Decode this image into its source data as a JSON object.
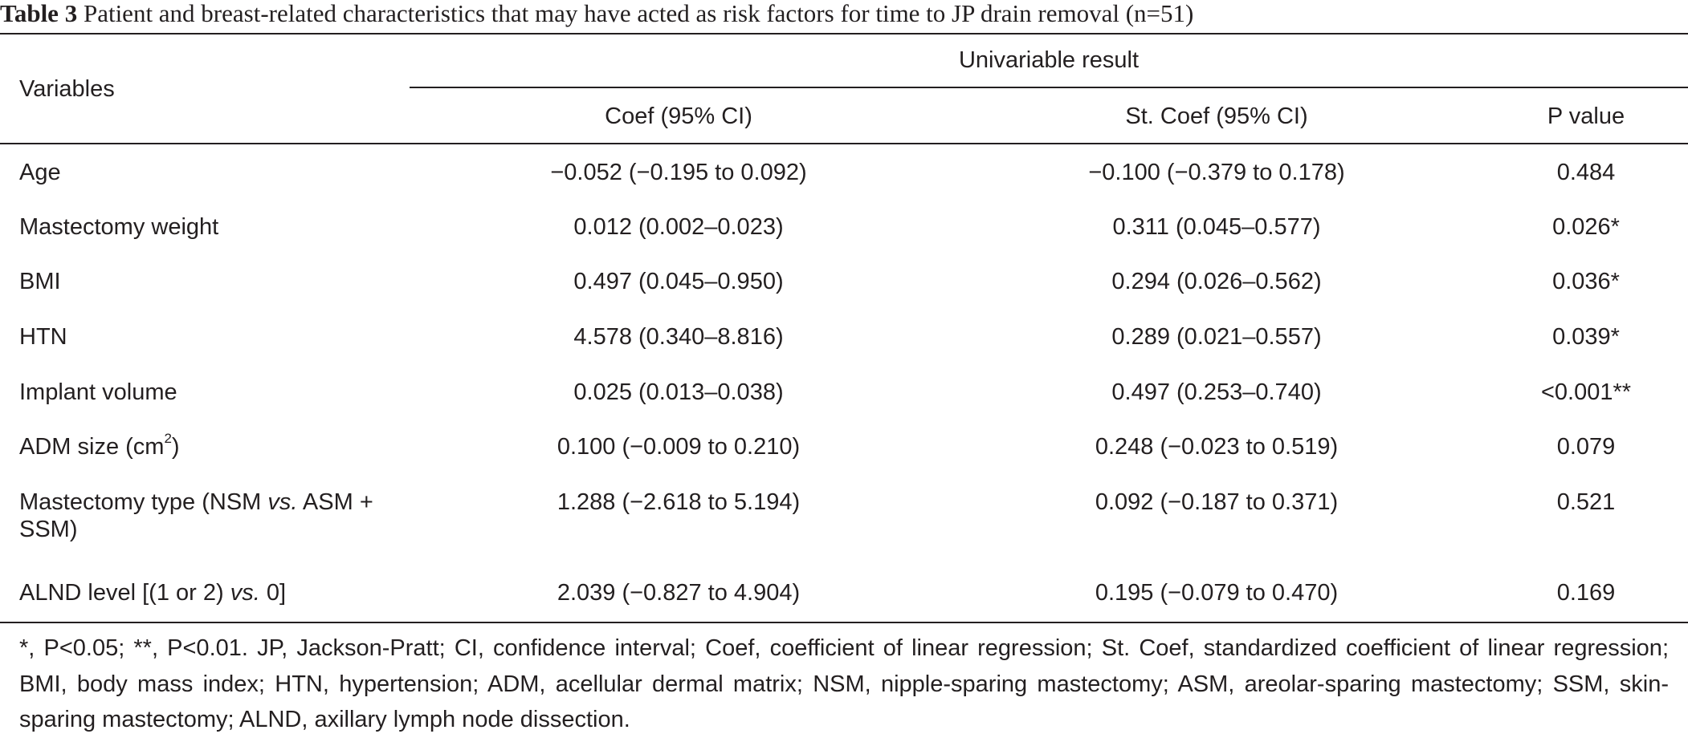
{
  "caption": {
    "label": "Table 3",
    "text": " Patient and breast-related characteristics that may have acted as risk factors for time to JP drain removal (n=51)"
  },
  "header": {
    "variables": "Variables",
    "group": "Univariable result",
    "coef": "Coef (95% CI)",
    "st_coef": "St. Coef (95% CI)",
    "p_value": "P value"
  },
  "rows": [
    {
      "variable": "Age",
      "coef": "−0.052 (−0.195 to 0.092)",
      "st_coef": "−0.100 (−0.379 to 0.178)",
      "p": "0.484"
    },
    {
      "variable": "Mastectomy weight",
      "coef": "0.012 (0.002–0.023)",
      "st_coef": "0.311 (0.045–0.577)",
      "p": "0.026*"
    },
    {
      "variable": "BMI",
      "coef": "0.497 (0.045–0.950)",
      "st_coef": "0.294 (0.026–0.562)",
      "p": "0.036*"
    },
    {
      "variable": "HTN",
      "coef": "4.578 (0.340–8.816)",
      "st_coef": "0.289 (0.021–0.557)",
      "p": "0.039*"
    },
    {
      "variable": "Implant volume",
      "coef": "0.025 (0.013–0.038)",
      "st_coef": "0.497 (0.253–0.740)",
      "p": "<0.001**"
    },
    {
      "variable_prefix": "ADM size (cm",
      "variable_sup": "2",
      "variable_suffix": ")",
      "coef": "0.100 (−0.009 to 0.210)",
      "st_coef": "0.248 (−0.023 to 0.519)",
      "p": "0.079"
    },
    {
      "variable_prefix": "Mastectomy type (NSM ",
      "variable_em": "vs.",
      "variable_suffix": " ASM + SSM)",
      "coef": "1.288 (−2.618 to 5.194)",
      "st_coef": "0.092 (−0.187 to 0.371)",
      "p": "0.521"
    },
    {
      "variable_prefix": "ALND level [(1 or 2) ",
      "variable_em": "vs.",
      "variable_suffix": " 0]",
      "coef": "2.039 (−0.827 to 4.904)",
      "st_coef": "0.195 (−0.079 to 0.470)",
      "p": "0.169"
    }
  ],
  "footnote": "*, P<0.05; **, P<0.01. JP, Jackson-Pratt; CI, confidence interval; Coef, coefficient of linear regression; St. Coef, standardized coefficient of linear regression; BMI, body mass index; HTN, hypertension; ADM, acellular dermal matrix; NSM, nipple-sparing mastectomy; ASM, areolar-sparing mastectomy; SSM, skin-sparing mastectomy; ALND, axillary lymph node dissection."
}
